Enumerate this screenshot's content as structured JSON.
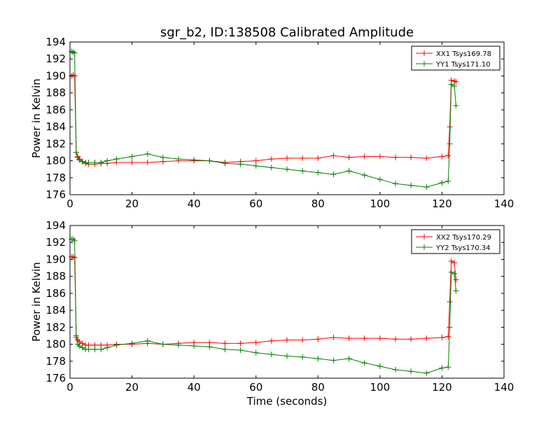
{
  "chart_data": [
    {
      "type": "line",
      "title": "sgr_b2, ID:138508 Calibrated Amplitude",
      "xlabel": "",
      "ylabel": "Power in Kelvin",
      "xlim": [
        0,
        140
      ],
      "ylim": [
        176,
        194
      ],
      "xticks": [
        0,
        20,
        40,
        60,
        80,
        100,
        120,
        140
      ],
      "yticks": [
        176,
        178,
        180,
        182,
        184,
        186,
        188,
        190,
        192,
        194
      ],
      "grid": false,
      "legend_position": "top-right",
      "marker": "+",
      "series": [
        {
          "name": "XX1 Tsys169.78",
          "color": "#ff0000",
          "x": [
            0.5,
            1.0,
            1.5,
            2.0,
            2.5,
            3,
            4,
            5,
            6,
            8,
            10,
            12,
            15,
            20,
            25,
            30,
            35,
            40,
            45,
            50,
            55,
            60,
            65,
            70,
            75,
            80,
            85,
            90,
            95,
            100,
            105,
            110,
            115,
            120,
            122,
            122.5,
            123,
            124,
            124.5
          ],
          "y": [
            190.0,
            190.1,
            190.0,
            181.0,
            180.5,
            180.2,
            179.9,
            179.7,
            179.6,
            179.6,
            179.7,
            179.7,
            179.8,
            179.8,
            179.8,
            179.9,
            180.0,
            180.0,
            180.0,
            179.8,
            179.9,
            180.0,
            180.2,
            180.3,
            180.3,
            180.3,
            180.6,
            180.4,
            180.5,
            180.5,
            180.4,
            180.4,
            180.3,
            180.5,
            180.6,
            184.0,
            189.5,
            189.4,
            189.3
          ]
        },
        {
          "name": "YY1 Tsys171.10",
          "color": "#008000",
          "x": [
            0.5,
            1.0,
            1.5,
            2.0,
            2.5,
            3,
            4,
            5,
            6,
            8,
            10,
            12,
            15,
            20,
            25,
            30,
            35,
            40,
            45,
            50,
            55,
            60,
            65,
            70,
            75,
            80,
            85,
            90,
            95,
            100,
            105,
            110,
            115,
            120,
            122,
            122.5,
            123,
            124,
            124.5
          ],
          "y": [
            192.9,
            192.8,
            192.7,
            181.0,
            180.4,
            180.1,
            179.9,
            179.8,
            179.8,
            179.8,
            179.8,
            180.0,
            180.2,
            180.5,
            180.8,
            180.4,
            180.2,
            180.1,
            180.0,
            179.7,
            179.6,
            179.4,
            179.2,
            179.0,
            178.8,
            178.6,
            178.4,
            178.8,
            178.3,
            177.8,
            177.3,
            177.1,
            176.9,
            177.4,
            177.6,
            182.0,
            189.0,
            188.8,
            186.5
          ]
        }
      ]
    },
    {
      "type": "line",
      "title": "",
      "xlabel": "Time (seconds)",
      "ylabel": "Power in Kelvin",
      "xlim": [
        0,
        140
      ],
      "ylim": [
        176,
        194
      ],
      "xticks": [
        0,
        20,
        40,
        60,
        80,
        100,
        120,
        140
      ],
      "yticks": [
        176,
        178,
        180,
        182,
        184,
        186,
        188,
        190,
        192,
        194
      ],
      "grid": false,
      "legend_position": "top-right",
      "marker": "+",
      "series": [
        {
          "name": "XX2 Tsys170.29",
          "color": "#ff0000",
          "x": [
            0.5,
            1.0,
            1.5,
            2.0,
            2.5,
            3,
            4,
            5,
            6,
            8,
            10,
            12,
            15,
            20,
            25,
            30,
            35,
            40,
            45,
            50,
            55,
            60,
            65,
            70,
            75,
            80,
            85,
            90,
            95,
            100,
            105,
            110,
            115,
            120,
            122,
            122.5,
            123,
            124,
            124.5
          ],
          "y": [
            190.3,
            190.3,
            190.2,
            181.0,
            180.5,
            180.3,
            180.1,
            179.9,
            179.9,
            179.9,
            179.9,
            179.9,
            180.0,
            180.0,
            180.1,
            180.0,
            180.1,
            180.2,
            180.2,
            180.1,
            180.1,
            180.2,
            180.4,
            180.5,
            180.5,
            180.6,
            180.8,
            180.7,
            180.7,
            180.7,
            180.6,
            180.6,
            180.7,
            180.8,
            180.9,
            185.0,
            189.8,
            189.6,
            187.6
          ]
        },
        {
          "name": "YY2 Tsys170.34",
          "color": "#008000",
          "x": [
            0.5,
            1.0,
            1.5,
            2.0,
            2.5,
            3,
            4,
            5,
            6,
            8,
            10,
            12,
            15,
            20,
            25,
            30,
            35,
            40,
            45,
            50,
            55,
            60,
            65,
            70,
            75,
            80,
            85,
            90,
            95,
            100,
            105,
            110,
            115,
            120,
            122,
            122.5,
            123,
            124,
            124.5
          ],
          "y": [
            192.4,
            192.4,
            192.2,
            180.8,
            180.0,
            179.8,
            179.6,
            179.4,
            179.4,
            179.4,
            179.4,
            179.6,
            179.9,
            180.1,
            180.4,
            180.0,
            179.9,
            179.8,
            179.7,
            179.4,
            179.3,
            179.0,
            178.8,
            178.6,
            178.5,
            178.3,
            178.1,
            178.3,
            177.8,
            177.4,
            177.0,
            176.8,
            176.6,
            177.2,
            177.3,
            182.0,
            188.5,
            188.3,
            186.3
          ]
        }
      ]
    }
  ]
}
